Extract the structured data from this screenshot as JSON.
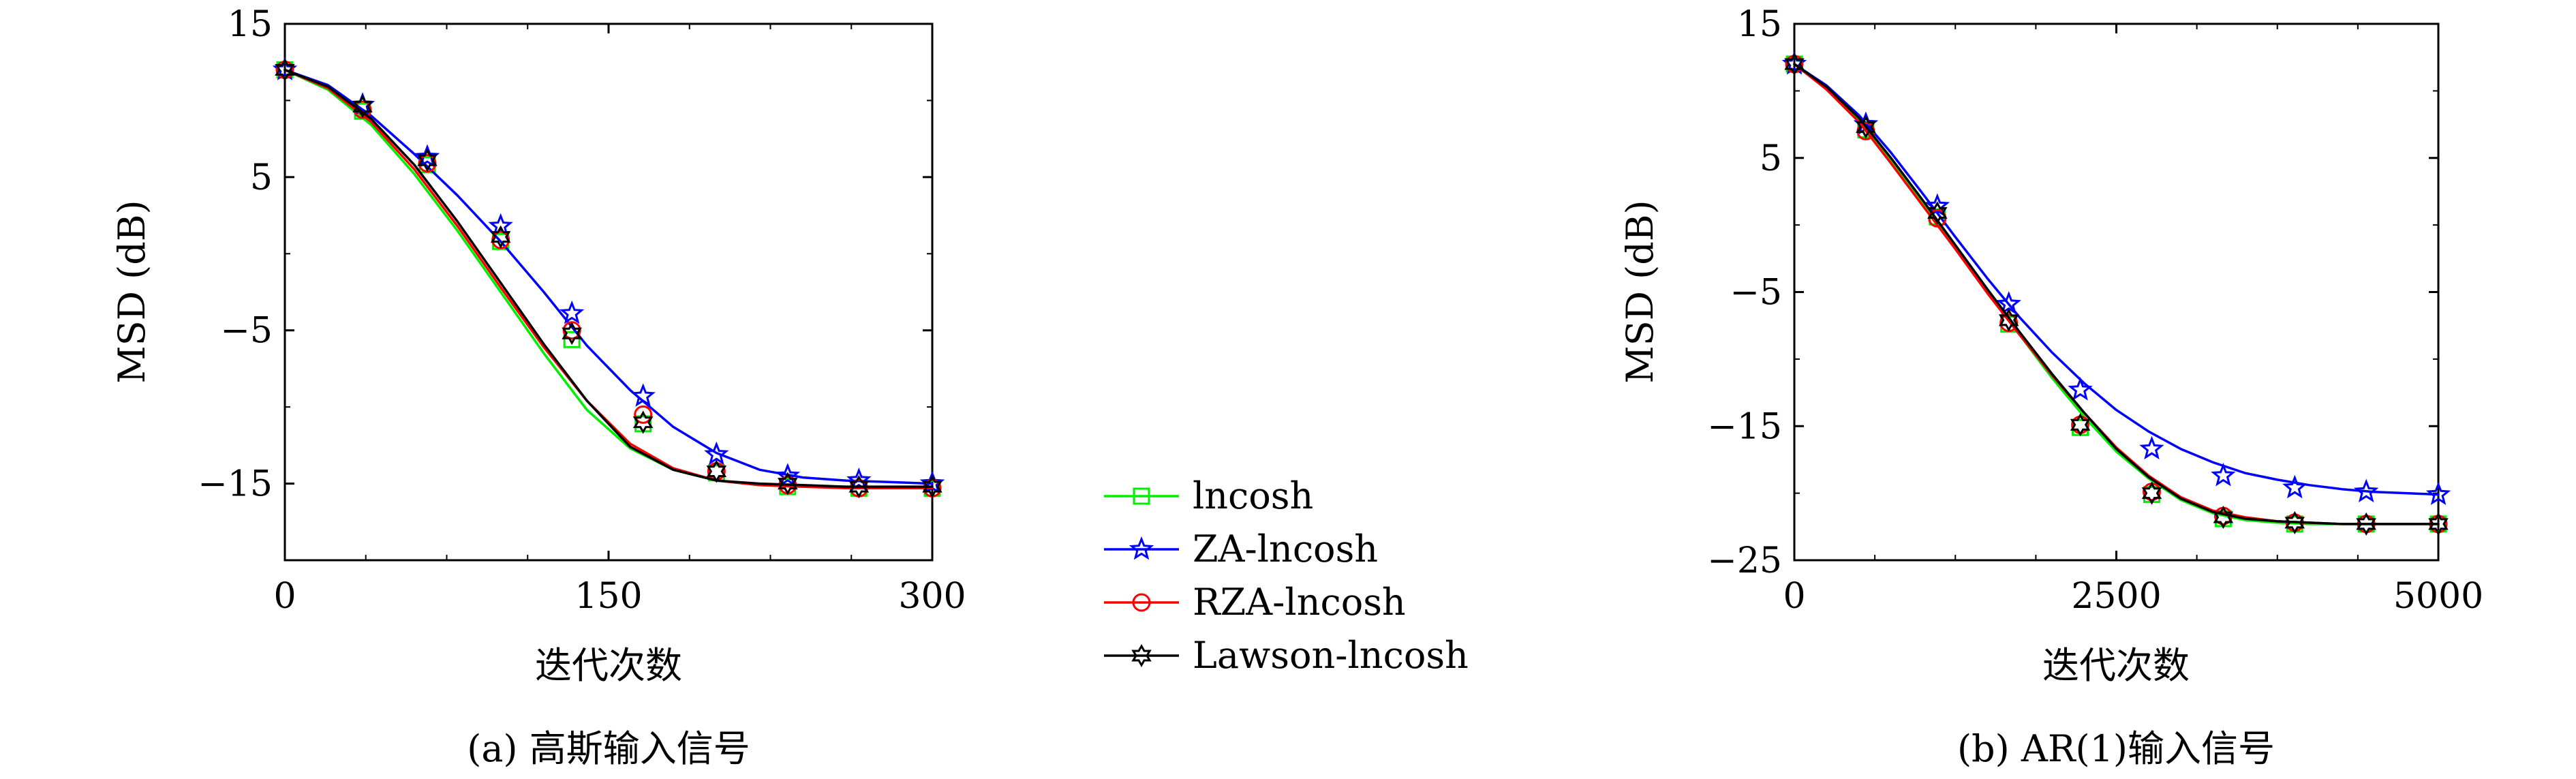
{
  "chart_data": [
    {
      "type": "line",
      "caption": "(a) 高斯输入信号",
      "xlabel": "迭代次数",
      "ylabel": "MSD (dB)",
      "xlim": [
        0,
        300
      ],
      "ylim": [
        -20,
        15
      ],
      "xticks": [
        0,
        150,
        300
      ],
      "xtick_labels": [
        "0",
        "150",
        "300"
      ],
      "yticks": [
        15,
        5,
        -5,
        -15
      ],
      "ytick_labels": [
        "15",
        "5",
        "−5",
        "−15"
      ],
      "grid": false,
      "series": [
        {
          "name": "lncosh",
          "color": "#00ee00",
          "marker": "square",
          "x": [
            0,
            20,
            40,
            60,
            80,
            100,
            120,
            140,
            160,
            180,
            200,
            220,
            240,
            260,
            280,
            300
          ],
          "y": [
            12.0,
            10.7,
            8.4,
            5.2,
            1.5,
            -2.5,
            -6.5,
            -10.2,
            -12.7,
            -14.1,
            -14.8,
            -15.1,
            -15.2,
            -15.2,
            -15.3,
            -15.3
          ],
          "marker_x": [
            0,
            36,
            66,
            100,
            133,
            166,
            200,
            233,
            266,
            300
          ],
          "marker_y": [
            12.0,
            9.3,
            5.8,
            0.8,
            -5.6,
            -11.1,
            -14.3,
            -15.2,
            -15.3,
            -15.3
          ]
        },
        {
          "name": "ZA-lncosh",
          "color": "#0000ff",
          "marker": "star",
          "x": [
            0,
            20,
            40,
            60,
            80,
            100,
            120,
            140,
            160,
            180,
            200,
            220,
            240,
            260,
            280,
            300
          ],
          "y": [
            12.0,
            11.0,
            9.0,
            6.5,
            3.8,
            0.8,
            -2.5,
            -6.0,
            -8.9,
            -11.3,
            -13.0,
            -14.1,
            -14.6,
            -14.8,
            -14.9,
            -15.0
          ],
          "marker_x": [
            0,
            36,
            66,
            100,
            133,
            166,
            200,
            233,
            266,
            300
          ],
          "marker_y": [
            12.0,
            9.7,
            6.3,
            1.8,
            -3.9,
            -9.3,
            -13.1,
            -14.5,
            -14.8,
            -15.0
          ]
        },
        {
          "name": "RZA-lncosh",
          "color": "#ff0000",
          "marker": "circle",
          "x": [
            0,
            20,
            40,
            60,
            80,
            100,
            120,
            140,
            160,
            180,
            200,
            220,
            240,
            260,
            280,
            300
          ],
          "y": [
            12.0,
            10.8,
            8.6,
            5.5,
            1.8,
            -2.2,
            -6.1,
            -9.6,
            -12.4,
            -14.0,
            -14.8,
            -15.1,
            -15.2,
            -15.3,
            -15.3,
            -15.3
          ],
          "marker_x": [
            0,
            36,
            66,
            100,
            133,
            166,
            200,
            233,
            266,
            300
          ],
          "marker_y": [
            12.0,
            9.4,
            5.9,
            0.9,
            -5.0,
            -10.5,
            -14.2,
            -15.1,
            -15.3,
            -15.3
          ]
        },
        {
          "name": "Lawson-lncosh",
          "color": "#000000",
          "marker": "hexagram",
          "x": [
            0,
            20,
            40,
            60,
            80,
            100,
            120,
            140,
            160,
            180,
            200,
            220,
            240,
            260,
            280,
            300
          ],
          "y": [
            12.0,
            10.9,
            8.8,
            5.8,
            2.1,
            -1.9,
            -5.9,
            -9.6,
            -12.6,
            -14.1,
            -14.8,
            -15.0,
            -15.1,
            -15.2,
            -15.2,
            -15.2
          ],
          "marker_x": [
            0,
            36,
            66,
            100,
            133,
            166,
            200,
            233,
            266,
            300
          ],
          "marker_y": [
            12.0,
            9.6,
            6.1,
            1.1,
            -5.2,
            -11.0,
            -14.2,
            -15.0,
            -15.2,
            -15.2
          ]
        }
      ]
    },
    {
      "type": "line",
      "caption": "(b) AR(1)输入信号",
      "xlabel": "迭代次数",
      "ylabel": "MSD (dB)",
      "xlim": [
        0,
        5000
      ],
      "ylim": [
        -25,
        15
      ],
      "xticks": [
        0,
        2500,
        5000
      ],
      "xtick_labels": [
        "0",
        "2500",
        "5000"
      ],
      "yticks": [
        15,
        5,
        -5,
        -15,
        -25
      ],
      "ytick_labels": [
        "15",
        "5",
        "−5",
        "−15",
        "−25"
      ],
      "grid": false,
      "series": [
        {
          "name": "lncosh",
          "color": "#00ee00",
          "marker": "square",
          "x": [
            0,
            250,
            500,
            750,
            1000,
            1250,
            1500,
            1750,
            2000,
            2250,
            2500,
            2750,
            3000,
            3250,
            3500,
            3750,
            4000,
            4250,
            4500,
            4750,
            5000
          ],
          "y": [
            12.0,
            10.2,
            7.8,
            4.8,
            1.6,
            -1.7,
            -5.0,
            -8.2,
            -11.4,
            -14.3,
            -16.9,
            -18.9,
            -20.5,
            -21.5,
            -22.0,
            -22.2,
            -22.3,
            -22.3,
            -22.3,
            -22.3,
            -22.3
          ],
          "marker_x": [
            0,
            555,
            1110,
            1665,
            2220,
            2775,
            3330,
            3885,
            4440,
            5000
          ],
          "marker_y": [
            12.0,
            7.1,
            0.6,
            -7.4,
            -15.1,
            -20.1,
            -21.9,
            -22.3,
            -22.3,
            -22.3
          ]
        },
        {
          "name": "ZA-lncosh",
          "color": "#0000ff",
          "marker": "star",
          "x": [
            0,
            250,
            500,
            750,
            1000,
            1250,
            1500,
            1750,
            2000,
            2250,
            2500,
            2750,
            3000,
            3250,
            3500,
            3750,
            4000,
            4250,
            4500,
            4750,
            5000
          ],
          "y": [
            12.0,
            10.4,
            8.2,
            5.4,
            2.3,
            -0.9,
            -4.0,
            -6.9,
            -9.5,
            -11.8,
            -13.8,
            -15.4,
            -16.7,
            -17.7,
            -18.5,
            -19.0,
            -19.4,
            -19.7,
            -19.9,
            -20.0,
            -20.1
          ],
          "marker_x": [
            0,
            555,
            1110,
            1665,
            2220,
            2775,
            3330,
            3885,
            4440,
            5000
          ],
          "marker_y": [
            12.0,
            7.5,
            1.4,
            -5.9,
            -12.3,
            -16.7,
            -18.7,
            -19.6,
            -19.9,
            -20.1
          ]
        },
        {
          "name": "RZA-lncosh",
          "color": "#ff0000",
          "marker": "circle",
          "x": [
            0,
            250,
            500,
            750,
            1000,
            1250,
            1500,
            1750,
            2000,
            2250,
            2500,
            2750,
            3000,
            3250,
            3500,
            3750,
            4000,
            4250,
            4500,
            4750,
            5000
          ],
          "y": [
            12.0,
            10.1,
            7.7,
            4.6,
            1.4,
            -1.8,
            -5.1,
            -8.2,
            -11.2,
            -14.0,
            -16.6,
            -18.7,
            -20.3,
            -21.3,
            -21.8,
            -22.1,
            -22.2,
            -22.3,
            -22.3,
            -22.3,
            -22.3
          ],
          "marker_x": [
            0,
            555,
            1110,
            1665,
            2220,
            2775,
            3330,
            3885,
            4440,
            5000
          ],
          "marker_y": [
            12.0,
            7.0,
            0.5,
            -7.3,
            -14.9,
            -19.9,
            -21.7,
            -22.2,
            -22.3,
            -22.3
          ]
        },
        {
          "name": "Lawson-lncosh",
          "color": "#000000",
          "marker": "hexagram",
          "x": [
            0,
            250,
            500,
            750,
            1000,
            1250,
            1500,
            1750,
            2000,
            2250,
            2500,
            2750,
            3000,
            3250,
            3500,
            3750,
            4000,
            4250,
            4500,
            4750,
            5000
          ],
          "y": [
            12.0,
            10.3,
            8.0,
            5.0,
            1.8,
            -1.5,
            -4.8,
            -8.0,
            -11.1,
            -14.0,
            -16.7,
            -18.8,
            -20.4,
            -21.4,
            -21.9,
            -22.1,
            -22.2,
            -22.3,
            -22.3,
            -22.3,
            -22.3
          ],
          "marker_x": [
            0,
            555,
            1110,
            1665,
            2220,
            2775,
            3330,
            3885,
            4440,
            5000
          ],
          "marker_y": [
            12.0,
            7.3,
            0.9,
            -7.1,
            -14.9,
            -20.0,
            -21.8,
            -22.2,
            -22.3,
            -22.3
          ]
        }
      ]
    }
  ],
  "legend": {
    "placement": "center",
    "items": [
      {
        "label": "lncosh",
        "color": "#00ee00",
        "marker": "square"
      },
      {
        "label": "ZA-lncosh",
        "color": "#0000ff",
        "marker": "star"
      },
      {
        "label": "RZA-lncosh",
        "color": "#ff0000",
        "marker": "circle"
      },
      {
        "label": "Lawson-lncosh",
        "color": "#000000",
        "marker": "hexagram"
      }
    ]
  }
}
